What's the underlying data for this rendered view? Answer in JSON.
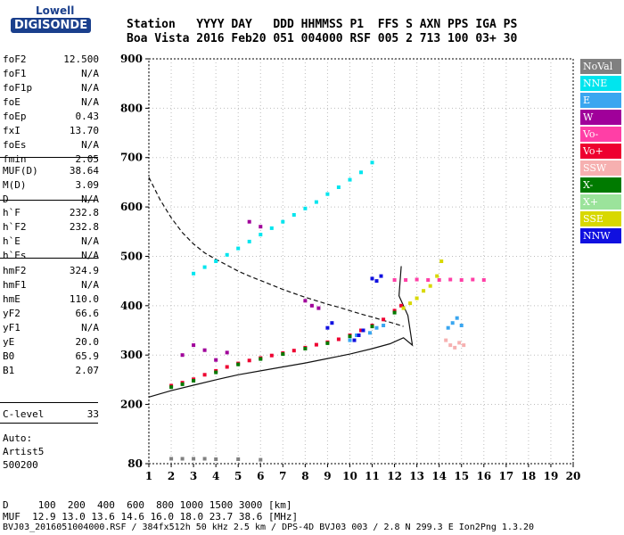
{
  "logo": {
    "line1": "Lowell",
    "line2": "DIGISONDE"
  },
  "header": {
    "row1": "Station   YYYY DAY   DDD HHMMSS P1  FFS S AXN PPS IGA PS",
    "row2": "Boa Vista 2016 Feb20 051 004000 RSF 005 2 713 100 03+ 30"
  },
  "params": {
    "group1": [
      {
        "name": "foF2",
        "value": "12.500"
      },
      {
        "name": "foF1",
        "value": "N/A"
      },
      {
        "name": "foF1p",
        "value": "N/A"
      },
      {
        "name": "foE",
        "value": "N/A"
      },
      {
        "name": "foEp",
        "value": "0.43"
      },
      {
        "name": "fxI",
        "value": "13.70"
      },
      {
        "name": "foEs",
        "value": "N/A"
      },
      {
        "name": "fmin",
        "value": "2.05"
      }
    ],
    "group2": [
      {
        "name": "MUF(D)",
        "value": "38.64"
      },
      {
        "name": "M(D)",
        "value": "3.09"
      },
      {
        "name": "D",
        "value": "N/A"
      }
    ],
    "group3": [
      {
        "name": "h`F",
        "value": "232.8"
      },
      {
        "name": "h`F2",
        "value": "232.8"
      },
      {
        "name": "h`E",
        "value": "N/A"
      },
      {
        "name": "h`Es",
        "value": "N/A"
      }
    ],
    "group4": [
      {
        "name": "hmF2",
        "value": "324.9"
      },
      {
        "name": "hmF1",
        "value": "N/A"
      },
      {
        "name": "hmE",
        "value": "110.0"
      },
      {
        "name": "yF2",
        "value": "66.6"
      },
      {
        "name": "yF1",
        "value": "N/A"
      },
      {
        "name": "yE",
        "value": "20.0"
      },
      {
        "name": "B0",
        "value": "65.9"
      },
      {
        "name": "B1",
        "value": "2.07"
      }
    ],
    "group5": [
      {
        "name": "C-level",
        "value": "33"
      }
    ]
  },
  "misc": {
    "auto": "Auto:",
    "artist": "Artist5",
    "code": "500200"
  },
  "footer": {
    "row1": "D     100  200  400  600  800 1000 1500 3000 [km]",
    "row2": "MUF  12.9 13.0 13.6 14.6 16.0 18.0 23.7 38.6 [MHz]",
    "row3": "BVJ03_2016051004000.RSF / 384fx512h 50 kHz 2.5 km / DPS-4D BVJ03 003 / 2.8 N 299.3 E Ion2Png 1.3.20"
  },
  "legend": [
    {
      "label": "NoVal",
      "color": "#808080"
    },
    {
      "label": "NNE",
      "color": "#00e5ee"
    },
    {
      "label": "E",
      "color": "#3aa6f0"
    },
    {
      "label": "W",
      "color": "#a0009a"
    },
    {
      "label": "Vo-",
      "color": "#ff3fa6"
    },
    {
      "label": "Vo+",
      "color": "#ee0030"
    },
    {
      "label": "SSW",
      "color": "#f6b0b0"
    },
    {
      "label": "X-",
      "color": "#007a00"
    },
    {
      "label": "X+",
      "color": "#9be39b"
    },
    {
      "label": "SSE",
      "color": "#d8d800"
    },
    {
      "label": "NNW",
      "color": "#1010e0"
    }
  ],
  "chart_data": {
    "type": "scatter",
    "xlim": [
      1,
      20
    ],
    "ylim": [
      80,
      900
    ],
    "xticks": [
      1,
      2,
      3,
      4,
      5,
      6,
      7,
      8,
      9,
      10,
      11,
      12,
      13,
      14,
      15,
      16,
      17,
      18,
      19,
      20
    ],
    "yticks": [
      80,
      200,
      300,
      400,
      500,
      600,
      700,
      800,
      900
    ],
    "grid": true,
    "series": [
      {
        "name": "Vo+",
        "color": "#ee0030",
        "x": [
          2.0,
          2.5,
          3.0,
          3.5,
          4.0,
          4.5,
          5.0,
          5.5,
          6.0,
          6.5,
          7.0,
          7.5,
          8.0,
          8.5,
          9.0,
          9.5,
          10.0,
          10.5,
          11.0,
          11.5,
          12.0,
          12.3
        ],
        "y": [
          238,
          244,
          251,
          260,
          268,
          276,
          283,
          289,
          294,
          299,
          304,
          309,
          315,
          321,
          326,
          332,
          340,
          350,
          360,
          372,
          390,
          400
        ]
      },
      {
        "name": "NNE",
        "color": "#00e5ee",
        "x": [
          3.0,
          3.5,
          4.0,
          4.5,
          5.0,
          5.5,
          6.0,
          6.5,
          7.0,
          7.5,
          8.0,
          8.5,
          9.0,
          9.5,
          10.0,
          10.5,
          11.0
        ],
        "y": [
          465,
          478,
          490,
          503,
          516,
          530,
          544,
          557,
          570,
          584,
          597,
          610,
          626,
          640,
          655,
          670,
          690
        ]
      },
      {
        "name": "E",
        "color": "#3aa6f0",
        "x": [
          10.0,
          10.3,
          10.6,
          10.9,
          11.2,
          11.5,
          14.4,
          14.6,
          14.8,
          15.0
        ],
        "y": [
          330,
          340,
          350,
          345,
          355,
          360,
          355,
          365,
          375,
          360
        ]
      },
      {
        "name": "SSE",
        "color": "#d8d800",
        "x": [
          12.4,
          12.7,
          13.0,
          13.3,
          13.6,
          13.9,
          14.1
        ],
        "y": [
          395,
          405,
          415,
          430,
          440,
          460,
          490
        ]
      },
      {
        "name": "X-",
        "color": "#007a00",
        "x": [
          2.0,
          2.5,
          3.0,
          4.0,
          5.0,
          6.0,
          7.0,
          8.0,
          9.0,
          10.0,
          11.0,
          12.0
        ],
        "y": [
          235,
          241,
          248,
          265,
          281,
          292,
          302,
          313,
          324,
          338,
          358,
          386
        ]
      },
      {
        "name": "W",
        "color": "#a0009a",
        "x": [
          2.5,
          3.0,
          3.5,
          4.0,
          4.5,
          5.5,
          6.0,
          8.0,
          8.3,
          8.6
        ],
        "y": [
          300,
          320,
          310,
          290,
          305,
          570,
          560,
          410,
          400,
          395
        ]
      },
      {
        "name": "NNW",
        "color": "#1010e0",
        "x": [
          9.0,
          9.2,
          10.2,
          10.4,
          10.6,
          11.0,
          11.2,
          11.4
        ],
        "y": [
          355,
          365,
          330,
          340,
          350,
          455,
          450,
          460
        ]
      },
      {
        "name": "Vo-",
        "color": "#ff3fa6",
        "x": [
          12.0,
          12.5,
          13.0,
          13.5,
          14.0,
          14.5,
          15.0,
          15.5,
          16.0
        ],
        "y": [
          452,
          452,
          453,
          452,
          452,
          453,
          452,
          453,
          452
        ]
      },
      {
        "name": "SSW",
        "color": "#f6b0b0",
        "x": [
          14.3,
          14.5,
          14.7,
          14.9,
          15.1
        ],
        "y": [
          330,
          320,
          315,
          325,
          320
        ]
      },
      {
        "name": "NoVal",
        "color": "#808080",
        "x": [
          2.0,
          2.5,
          3.0,
          3.5,
          4.0,
          5.0,
          6.0
        ],
        "y": [
          90,
          90,
          90,
          90,
          89,
          89,
          88
        ]
      }
    ],
    "curves": [
      {
        "style": "dashed",
        "x": [
          1.0,
          1.5,
          2.0,
          2.5,
          3.0,
          3.5,
          4.0,
          4.5,
          5.0,
          5.5,
          6.0,
          6.5,
          7.0,
          7.5,
          8.0,
          8.5,
          9.0,
          9.5,
          10.0,
          10.5,
          11.0,
          11.5,
          12.0,
          12.4
        ],
        "y": [
          660,
          615,
          578,
          548,
          525,
          507,
          494,
          482,
          470,
          460,
          451,
          442,
          433,
          425,
          417,
          410,
          403,
          397,
          390,
          383,
          377,
          370,
          364,
          358
        ]
      },
      {
        "style": "solid",
        "x": [
          1.0,
          2.0,
          3.0,
          4.0,
          5.0,
          6.0,
          7.0,
          8.0,
          9.0,
          10.0,
          11.0,
          11.8,
          12.4,
          12.8,
          12.6,
          12.2,
          12.3
        ],
        "y": [
          215,
          228,
          239,
          250,
          260,
          268,
          276,
          284,
          293,
          302,
          313,
          323,
          335,
          320,
          380,
          420,
          480
        ]
      }
    ]
  }
}
